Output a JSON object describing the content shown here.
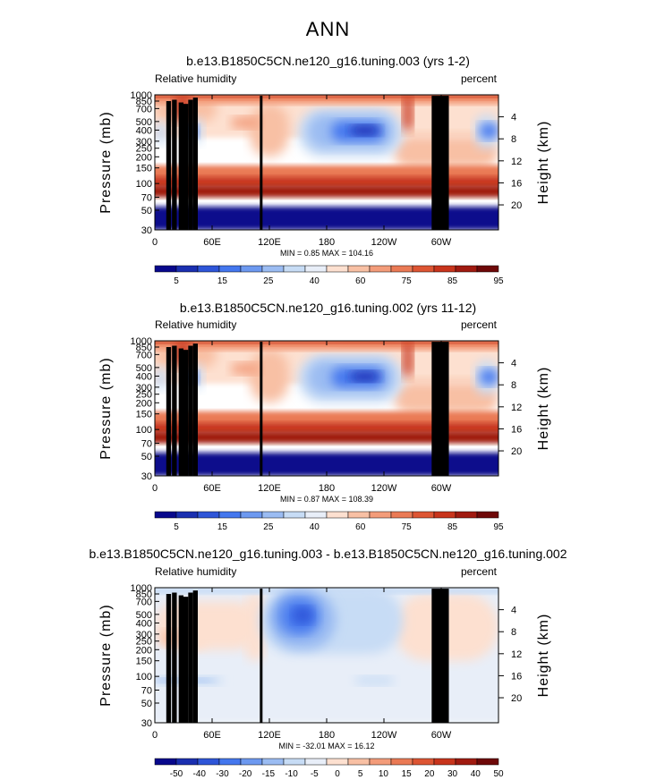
{
  "page_title": "ANN",
  "chart_data": [
    {
      "type": "heatmap",
      "title": "b.e13.B1850C5CN.ne120_g16.tuning.003 (yrs 1-2)",
      "subtitle_left": "Relative humidity",
      "subtitle_right": "percent",
      "ylabel": "Pressure (mb)",
      "ylabel_right": "Height (km)",
      "xticks": [
        "0",
        "60E",
        "120E",
        "180",
        "120W",
        "60W"
      ],
      "yticks_pressure": [
        "30",
        "50",
        "70",
        "100",
        "150",
        "200",
        "250",
        "300",
        "400",
        "500",
        "700",
        "850",
        "1000"
      ],
      "yticks_height": [
        "20",
        "16",
        "12",
        "8",
        "4"
      ],
      "min_text": "MIN =    0.85   MAX = 104.16",
      "colorbar_labels": [
        "5",
        "15",
        "25",
        "40",
        "60",
        "75",
        "85",
        "95"
      ],
      "colorbar_colors": [
        "#08088c",
        "#1a2fb0",
        "#2e55d8",
        "#4477ee",
        "#6d99f0",
        "#9bbcf2",
        "#c7dcf5",
        "#e8eef8",
        "#fde0d0",
        "#f8c0a4",
        "#f39c7a",
        "#ea7a55",
        "#dd5533",
        "#c8341c",
        "#a01a10",
        "#6e0808"
      ],
      "xlim": [
        0,
        360
      ],
      "ylim_mb": [
        1000,
        30
      ]
    },
    {
      "type": "heatmap",
      "title": "b.e13.B1850C5CN.ne120_g16.tuning.002 (yrs 11-12)",
      "subtitle_left": "Relative humidity",
      "subtitle_right": "percent",
      "ylabel": "Pressure (mb)",
      "ylabel_right": "Height (km)",
      "xticks": [
        "0",
        "60E",
        "120E",
        "180",
        "120W",
        "60W"
      ],
      "yticks_pressure": [
        "30",
        "50",
        "70",
        "100",
        "150",
        "200",
        "250",
        "300",
        "400",
        "500",
        "700",
        "850",
        "1000"
      ],
      "yticks_height": [
        "20",
        "16",
        "12",
        "8",
        "4"
      ],
      "min_text": "MIN =    0.87   MAX = 108.39",
      "colorbar_labels": [
        "5",
        "15",
        "25",
        "40",
        "60",
        "75",
        "85",
        "95"
      ],
      "colorbar_colors": [
        "#08088c",
        "#1a2fb0",
        "#2e55d8",
        "#4477ee",
        "#6d99f0",
        "#9bbcf2",
        "#c7dcf5",
        "#e8eef8",
        "#fde0d0",
        "#f8c0a4",
        "#f39c7a",
        "#ea7a55",
        "#dd5533",
        "#c8341c",
        "#a01a10",
        "#6e0808"
      ],
      "xlim": [
        0,
        360
      ],
      "ylim_mb": [
        1000,
        30
      ]
    },
    {
      "type": "heatmap",
      "title": "b.e13.B1850C5CN.ne120_g16.tuning.003 - b.e13.B1850C5CN.ne120_g16.tuning.002",
      "subtitle_left": "Relative humidity",
      "subtitle_right": "percent",
      "ylabel": "Pressure (mb)",
      "ylabel_right": "Height (km)",
      "xticks": [
        "0",
        "60E",
        "120E",
        "180",
        "120W",
        "60W"
      ],
      "yticks_pressure": [
        "30",
        "50",
        "70",
        "100",
        "150",
        "200",
        "250",
        "300",
        "400",
        "500",
        "700",
        "850",
        "1000"
      ],
      "yticks_height": [
        "20",
        "16",
        "12",
        "8",
        "4"
      ],
      "min_text": "MIN = -32.01   MAX =  16.12",
      "colorbar_labels": [
        "-50",
        "-40",
        "-30",
        "-20",
        "-15",
        "-10",
        "-5",
        "0",
        "5",
        "10",
        "15",
        "20",
        "30",
        "40",
        "50"
      ],
      "colorbar_colors": [
        "#08088c",
        "#1a2fb0",
        "#2e55d8",
        "#4477ee",
        "#6d99f0",
        "#9bbcf2",
        "#c7dcf5",
        "#e8eef8",
        "#fde0d0",
        "#f8c0a4",
        "#f39c7a",
        "#ea7a55",
        "#dd5533",
        "#c8341c",
        "#a01a10",
        "#6e0808"
      ],
      "xlim": [
        0,
        360
      ],
      "ylim_mb": [
        1000,
        30
      ]
    }
  ]
}
